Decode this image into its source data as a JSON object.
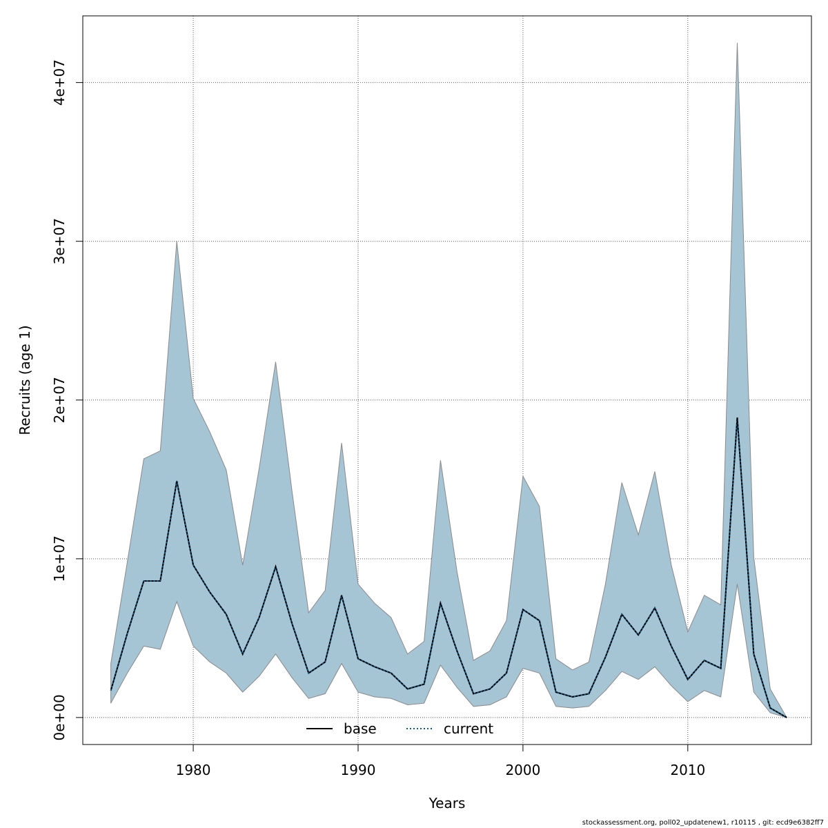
{
  "chart_data": {
    "type": "area",
    "title": "",
    "xlabel": "Years",
    "ylabel": "Recruits (age 1)",
    "xlim": [
      1973.3,
      2017.5
    ],
    "ylim": [
      -1700000,
      44200000
    ],
    "x_ticks": [
      1980,
      1990,
      2000,
      2010
    ],
    "x_tick_labels": [
      "1980",
      "1990",
      "2000",
      "2010"
    ],
    "y_ticks": [
      0,
      10000000,
      20000000,
      30000000,
      40000000
    ],
    "y_tick_labels": [
      "0e+00",
      "1e+07",
      "2e+07",
      "3e+07",
      "4e+07"
    ],
    "grid": true,
    "legend_position": "bottom-center",
    "colors": {
      "band_fill": "#a5c4d4",
      "band_edge": "#8a8a8a",
      "base_line": "#000000",
      "current_line": "#0a5a8a",
      "grid": "#555555"
    },
    "x": [
      1975,
      1976,
      1977,
      1978,
      1979,
      1980,
      1981,
      1982,
      1983,
      1984,
      1985,
      1986,
      1987,
      1988,
      1989,
      1990,
      1991,
      1992,
      1993,
      1994,
      1995,
      1996,
      1997,
      1998,
      1999,
      2000,
      2001,
      2002,
      2003,
      2004,
      2005,
      2006,
      2007,
      2008,
      2009,
      2010,
      2011,
      2012,
      2013,
      2014,
      2015,
      2016
    ],
    "band_upper": [
      3400000,
      9800000,
      16300000,
      16800000,
      30000000,
      20100000,
      18000000,
      15600000,
      9600000,
      15700000,
      22400000,
      14200000,
      6600000,
      8000000,
      17300000,
      8400000,
      7200000,
      6300000,
      4000000,
      4800000,
      16200000,
      9200000,
      3600000,
      4200000,
      6100000,
      15200000,
      13300000,
      3700000,
      3000000,
      3500000,
      8400000,
      14800000,
      11500000,
      15500000,
      9600000,
      5400000,
      7700000,
      7100000,
      42500000,
      10100000,
      1800000,
      0
    ],
    "band_lower": [
      900000,
      2800000,
      4500000,
      4300000,
      7300000,
      4500000,
      3500000,
      2800000,
      1600000,
      2600000,
      4000000,
      2500000,
      1200000,
      1500000,
      3400000,
      1600000,
      1300000,
      1200000,
      800000,
      900000,
      3300000,
      1900000,
      700000,
      800000,
      1300000,
      3100000,
      2800000,
      700000,
      600000,
      700000,
      1700000,
      2900000,
      2400000,
      3200000,
      2000000,
      1000000,
      1700000,
      1300000,
      8400000,
      1600000,
      300000,
      0
    ],
    "series": [
      {
        "name": "base",
        "style": "solid",
        "values": [
          1700000,
          5300000,
          8600000,
          8600000,
          14900000,
          9600000,
          7900000,
          6500000,
          4000000,
          6300000,
          9500000,
          5900000,
          2800000,
          3500000,
          7700000,
          3700000,
          3200000,
          2800000,
          1800000,
          2100000,
          7200000,
          4200000,
          1500000,
          1800000,
          2800000,
          6800000,
          6100000,
          1600000,
          1300000,
          1500000,
          3800000,
          6500000,
          5200000,
          6900000,
          4500000,
          2400000,
          3600000,
          3100000,
          18900000,
          4000000,
          600000,
          0
        ]
      },
      {
        "name": "current",
        "style": "dotted",
        "values": [
          1700000,
          5300000,
          8600000,
          8600000,
          14900000,
          9600000,
          7900000,
          6500000,
          4000000,
          6300000,
          9500000,
          5900000,
          2800000,
          3500000,
          7700000,
          3700000,
          3200000,
          2800000,
          1800000,
          2100000,
          7200000,
          4200000,
          1500000,
          1800000,
          2800000,
          6800000,
          6100000,
          1600000,
          1300000,
          1500000,
          3800000,
          6500000,
          5200000,
          6900000,
          4500000,
          2400000,
          3600000,
          3100000,
          18900000,
          4000000,
          600000,
          0
        ]
      }
    ]
  },
  "footer": {
    "text": "stockassessment.org, poll02_updatenew1, r10115 , git: ecd9e6382ff7"
  }
}
